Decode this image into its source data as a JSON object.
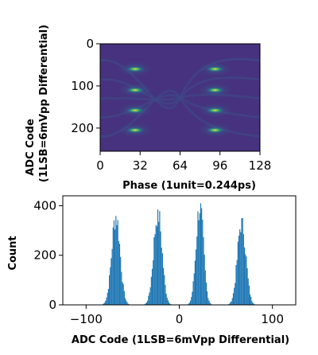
{
  "chart_data": [
    {
      "type": "heatmap",
      "title": "",
      "xlabel": "Phase (1unit=0.244ps)",
      "ylabel_line1": "ADC Code",
      "ylabel_line2": "(1LSB=6mVpp Differential)",
      "xlim": [
        0,
        128
      ],
      "ylim": [
        255,
        0
      ],
      "x_ticks": [
        0,
        32,
        64,
        96,
        128
      ],
      "x_tick_labels": [
        "0",
        "32",
        "64",
        "96",
        "128"
      ],
      "y_ticks": [
        0,
        100,
        200
      ],
      "y_tick_labels": [
        "0",
        "100",
        "200"
      ],
      "colormap": "viridis",
      "colors": {
        "low": "#440154",
        "mid": "#21918c",
        "high": "#fde725"
      },
      "bright_spots": [
        {
          "x": 28,
          "y": 60
        },
        {
          "x": 28,
          "y": 110
        },
        {
          "x": 28,
          "y": 158
        },
        {
          "x": 28,
          "y": 205
        },
        {
          "x": 92,
          "y": 60
        },
        {
          "x": 92,
          "y": 110
        },
        {
          "x": 92,
          "y": 158
        },
        {
          "x": 92,
          "y": 205
        }
      ]
    },
    {
      "type": "bar",
      "title": "",
      "xlabel": "ADC Code (1LSB=6mVpp Differential)",
      "ylabel": "Count",
      "xlim": [
        -125,
        125
      ],
      "ylim": [
        0,
        440
      ],
      "x_ticks": [
        -100,
        0,
        100
      ],
      "x_tick_labels": [
        "−100",
        "0",
        "100"
      ],
      "y_ticks": [
        0,
        200,
        400
      ],
      "y_tick_labels": [
        "0",
        "200",
        "400"
      ],
      "bar_color": "#1f77b4",
      "peaks": [
        {
          "center": -68,
          "peak_count": 370,
          "sigma": 4.5
        },
        {
          "center": -23,
          "peak_count": 385,
          "sigma": 4.5
        },
        {
          "center": 22,
          "peak_count": 410,
          "sigma": 4.0
        },
        {
          "center": 67,
          "peak_count": 350,
          "sigma": 4.5
        }
      ]
    }
  ]
}
